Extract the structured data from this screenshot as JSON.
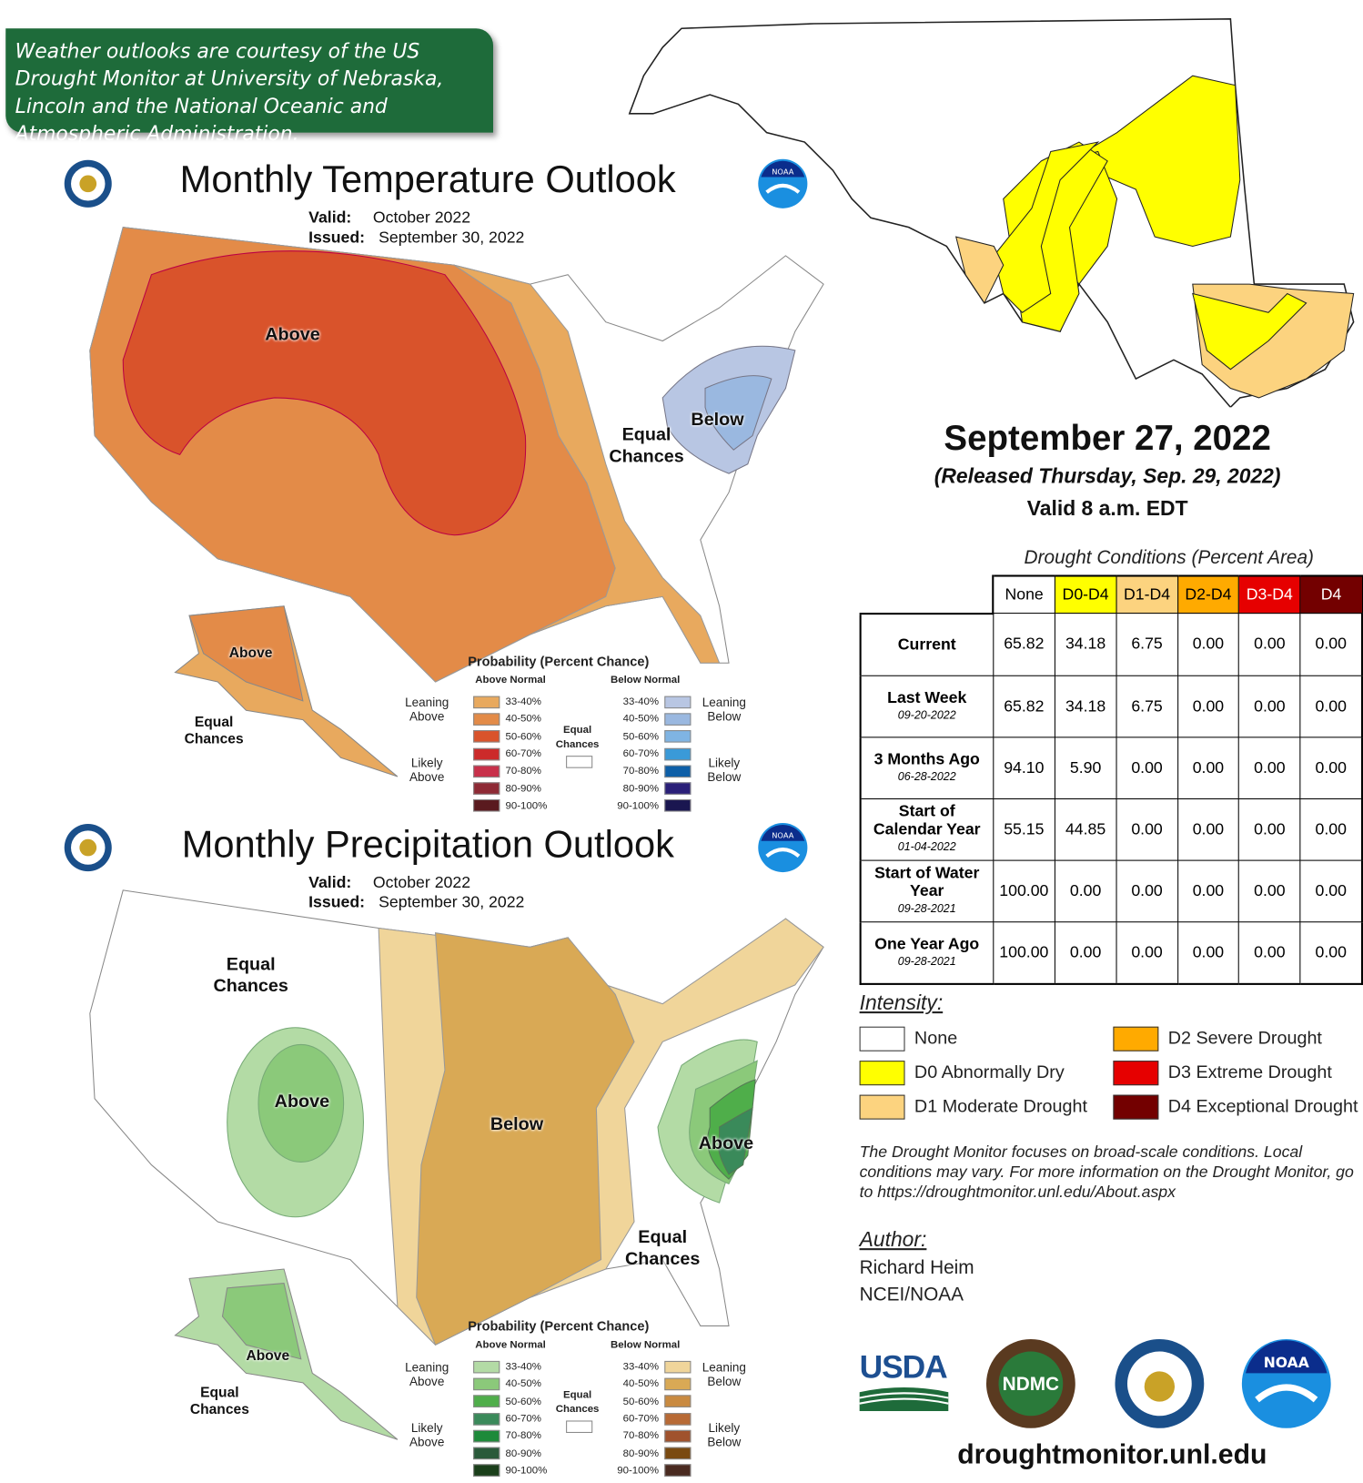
{
  "banner": {
    "text": "Weather outlooks are courtesy of the US Drought Monitor at University of Nebraska, Lincoln and the National Oceanic and Atmospheric Administration."
  },
  "temperature_outlook": {
    "title": "Monthly Temperature Outlook",
    "valid_label": "Valid:",
    "valid": "October 2022",
    "issued_label": "Issued:",
    "issued": "September 30, 2022",
    "map_labels": {
      "above": "Above",
      "equal": "Equal Chances",
      "below": "Below",
      "ak_above": "Above",
      "ak_equal": "Equal Chances"
    },
    "legend": {
      "title": "Probability (Percent Chance)",
      "above_header": "Above Normal",
      "below_header": "Below Normal",
      "leaning_above": "Leaning Above",
      "likely_above": "Likely Above",
      "leaning_below": "Leaning Below",
      "likely_below": "Likely Below",
      "equal": "Equal Chances",
      "above": [
        {
          "range": "33-40%",
          "color": "#e8a95e"
        },
        {
          "range": "40-50%",
          "color": "#e38b48"
        },
        {
          "range": "50-60%",
          "color": "#d9532b"
        },
        {
          "range": "60-70%",
          "color": "#cc2a2a"
        },
        {
          "range": "70-80%",
          "color": "#c8304a"
        },
        {
          "range": "80-90%",
          "color": "#8e2a35"
        },
        {
          "range": "90-100%",
          "color": "#5a1a1f"
        }
      ],
      "below": [
        {
          "range": "33-40%",
          "color": "#b8c6e3"
        },
        {
          "range": "40-50%",
          "color": "#9ab8e0"
        },
        {
          "range": "50-60%",
          "color": "#7fb4e3"
        },
        {
          "range": "60-70%",
          "color": "#3a9ad8"
        },
        {
          "range": "70-80%",
          "color": "#0d5fa8"
        },
        {
          "range": "80-90%",
          "color": "#2a1f78"
        },
        {
          "range": "90-100%",
          "color": "#1a1650"
        }
      ]
    }
  },
  "precipitation_outlook": {
    "title": "Monthly Precipitation Outlook",
    "valid_label": "Valid:",
    "valid": "October 2022",
    "issued_label": "Issued:",
    "issued": "September 30, 2022",
    "map_labels": {
      "equal_w": "Equal Chances",
      "above_w": "Above",
      "below": "Below",
      "above_e": "Above",
      "equal_se": "Equal Chances",
      "ak_above": "Above",
      "ak_equal": "Equal Chances"
    },
    "legend": {
      "title": "Probability (Percent Chance)",
      "above_header": "Above Normal",
      "below_header": "Below Normal",
      "leaning_above": "Leaning Above",
      "likely_above": "Likely Above",
      "leaning_below": "Leaning Below",
      "likely_below": "Likely Below",
      "equal": "Equal Chances",
      "above": [
        {
          "range": "33-40%",
          "color": "#b3dba5"
        },
        {
          "range": "40-50%",
          "color": "#8bc97a"
        },
        {
          "range": "50-60%",
          "color": "#4fae4a"
        },
        {
          "range": "60-70%",
          "color": "#3a8a5a"
        },
        {
          "range": "70-80%",
          "color": "#1e8a3a"
        },
        {
          "range": "80-90%",
          "color": "#2a5a3a"
        },
        {
          "range": "90-100%",
          "color": "#1a3f1a"
        }
      ],
      "below": [
        {
          "range": "33-40%",
          "color": "#f0d59a"
        },
        {
          "range": "40-50%",
          "color": "#d9a955"
        },
        {
          "range": "50-60%",
          "color": "#c98a40"
        },
        {
          "range": "60-70%",
          "color": "#b86a35"
        },
        {
          "range": "70-80%",
          "color": "#a0522d"
        },
        {
          "range": "80-90%",
          "color": "#7a4a10"
        },
        {
          "range": "90-100%",
          "color": "#4a2a20"
        }
      ]
    }
  },
  "drought_monitor": {
    "date": "September 27, 2022",
    "released": "(Released Thursday, Sep. 29, 2022)",
    "valid": "Valid 8 a.m. EDT",
    "table_title": "Drought Conditions (Percent Area)",
    "columns": [
      {
        "label": "None",
        "bg": "#ffffff",
        "fg": "#000000"
      },
      {
        "label": "D0-D4",
        "bg": "#ffff00",
        "fg": "#000000"
      },
      {
        "label": "D1-D4",
        "bg": "#fcd37f",
        "fg": "#000000"
      },
      {
        "label": "D2-D4",
        "bg": "#ffaa00",
        "fg": "#000000"
      },
      {
        "label": "D3-D4",
        "bg": "#e60000",
        "fg": "#ffffff"
      },
      {
        "label": "D4",
        "bg": "#730000",
        "fg": "#ffffff"
      }
    ],
    "rows": [
      {
        "label": "Current",
        "date": "",
        "values": [
          "65.82",
          "34.18",
          "6.75",
          "0.00",
          "0.00",
          "0.00"
        ]
      },
      {
        "label": "Last Week",
        "date": "09-20-2022",
        "values": [
          "65.82",
          "34.18",
          "6.75",
          "0.00",
          "0.00",
          "0.00"
        ]
      },
      {
        "label": "3 Months Ago",
        "date": "06-28-2022",
        "values": [
          "94.10",
          "5.90",
          "0.00",
          "0.00",
          "0.00",
          "0.00"
        ]
      },
      {
        "label": "Start of Calendar Year",
        "date": "01-04-2022",
        "values": [
          "55.15",
          "44.85",
          "0.00",
          "0.00",
          "0.00",
          "0.00"
        ]
      },
      {
        "label": "Start of Water Year",
        "date": "09-28-2021",
        "values": [
          "100.00",
          "0.00",
          "0.00",
          "0.00",
          "0.00",
          "0.00"
        ]
      },
      {
        "label": "One Year Ago",
        "date": "09-28-2021",
        "values": [
          "100.00",
          "0.00",
          "0.00",
          "0.00",
          "0.00",
          "0.00"
        ]
      }
    ],
    "intensity_title": "Intensity:",
    "intensity": [
      {
        "label": "None",
        "color": "#ffffff"
      },
      {
        "label": "D0 Abnormally Dry",
        "color": "#ffff00"
      },
      {
        "label": "D1 Moderate Drought",
        "color": "#fcd37f"
      },
      {
        "label": "D2 Severe Drought",
        "color": "#ffaa00"
      },
      {
        "label": "D3 Extreme Drought",
        "color": "#e60000"
      },
      {
        "label": "D4 Exceptional Drought",
        "color": "#730000"
      }
    ],
    "note": "The Drought Monitor focuses on broad-scale conditions. Local conditions may vary. For more information on the Drought Monitor, go to https://droughtmonitor.unl.edu/About.aspx",
    "author_title": "Author:",
    "author": "Richard Heim",
    "author_org": "NCEI/NOAA",
    "logos": {
      "usda": "USDA",
      "ndmc": "NDMC",
      "noaa": "NOAA"
    },
    "website": "droughtmonitor.unl.edu"
  }
}
